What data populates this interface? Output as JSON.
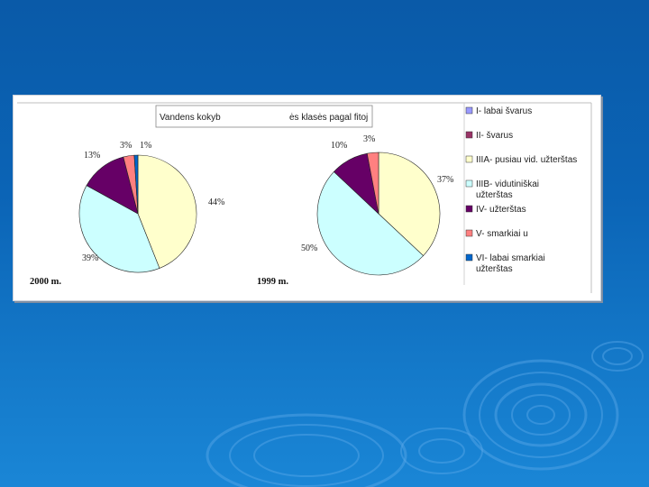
{
  "chart_data": {
    "type": "pie",
    "title_left": "Vandens kokyb",
    "title_right": "ės klasės pagal fitoj",
    "categories": [
      "I- labai švarus",
      "II- švarus",
      "IIIA- pusiau vid. užterštas",
      "IIIB- vidutiniškai užterštas",
      "IV- užterštas",
      "V- smarkiai u",
      "VI- labai smarkiai užterštas"
    ],
    "legend": [
      {
        "line1": "I- labai švarus",
        "line2": ""
      },
      {
        "line1": "II- švarus",
        "line2": ""
      },
      {
        "line1": "IIIA- pusiau vid. užterštas",
        "line2": ""
      },
      {
        "line1": "IIIB- vidutiniškai",
        "line2": "užterštas"
      },
      {
        "line1": "IV- užterštas",
        "line2": ""
      },
      {
        "line1": "V- smarkiai u",
        "line2": ""
      },
      {
        "line1": "VI- labai smarkiai",
        "line2": "užterštas"
      }
    ],
    "colors": [
      "#9999ff",
      "#993366",
      "#ffffcc",
      "#ccffff",
      "#660066",
      "#ff8080",
      "#0066cc"
    ],
    "pies": [
      {
        "name": "2000 m.",
        "values": [
          0,
          0,
          44,
          39,
          13,
          3,
          1
        ],
        "labels": [
          "",
          "",
          "44%",
          "39%",
          "13%",
          "3%",
          "1%"
        ]
      },
      {
        "name": "1999 m.",
        "values": [
          0,
          0,
          37,
          50,
          10,
          3,
          0
        ],
        "labels": [
          "",
          "",
          "37%",
          "50%",
          "10%",
          "3%",
          ""
        ]
      }
    ]
  }
}
